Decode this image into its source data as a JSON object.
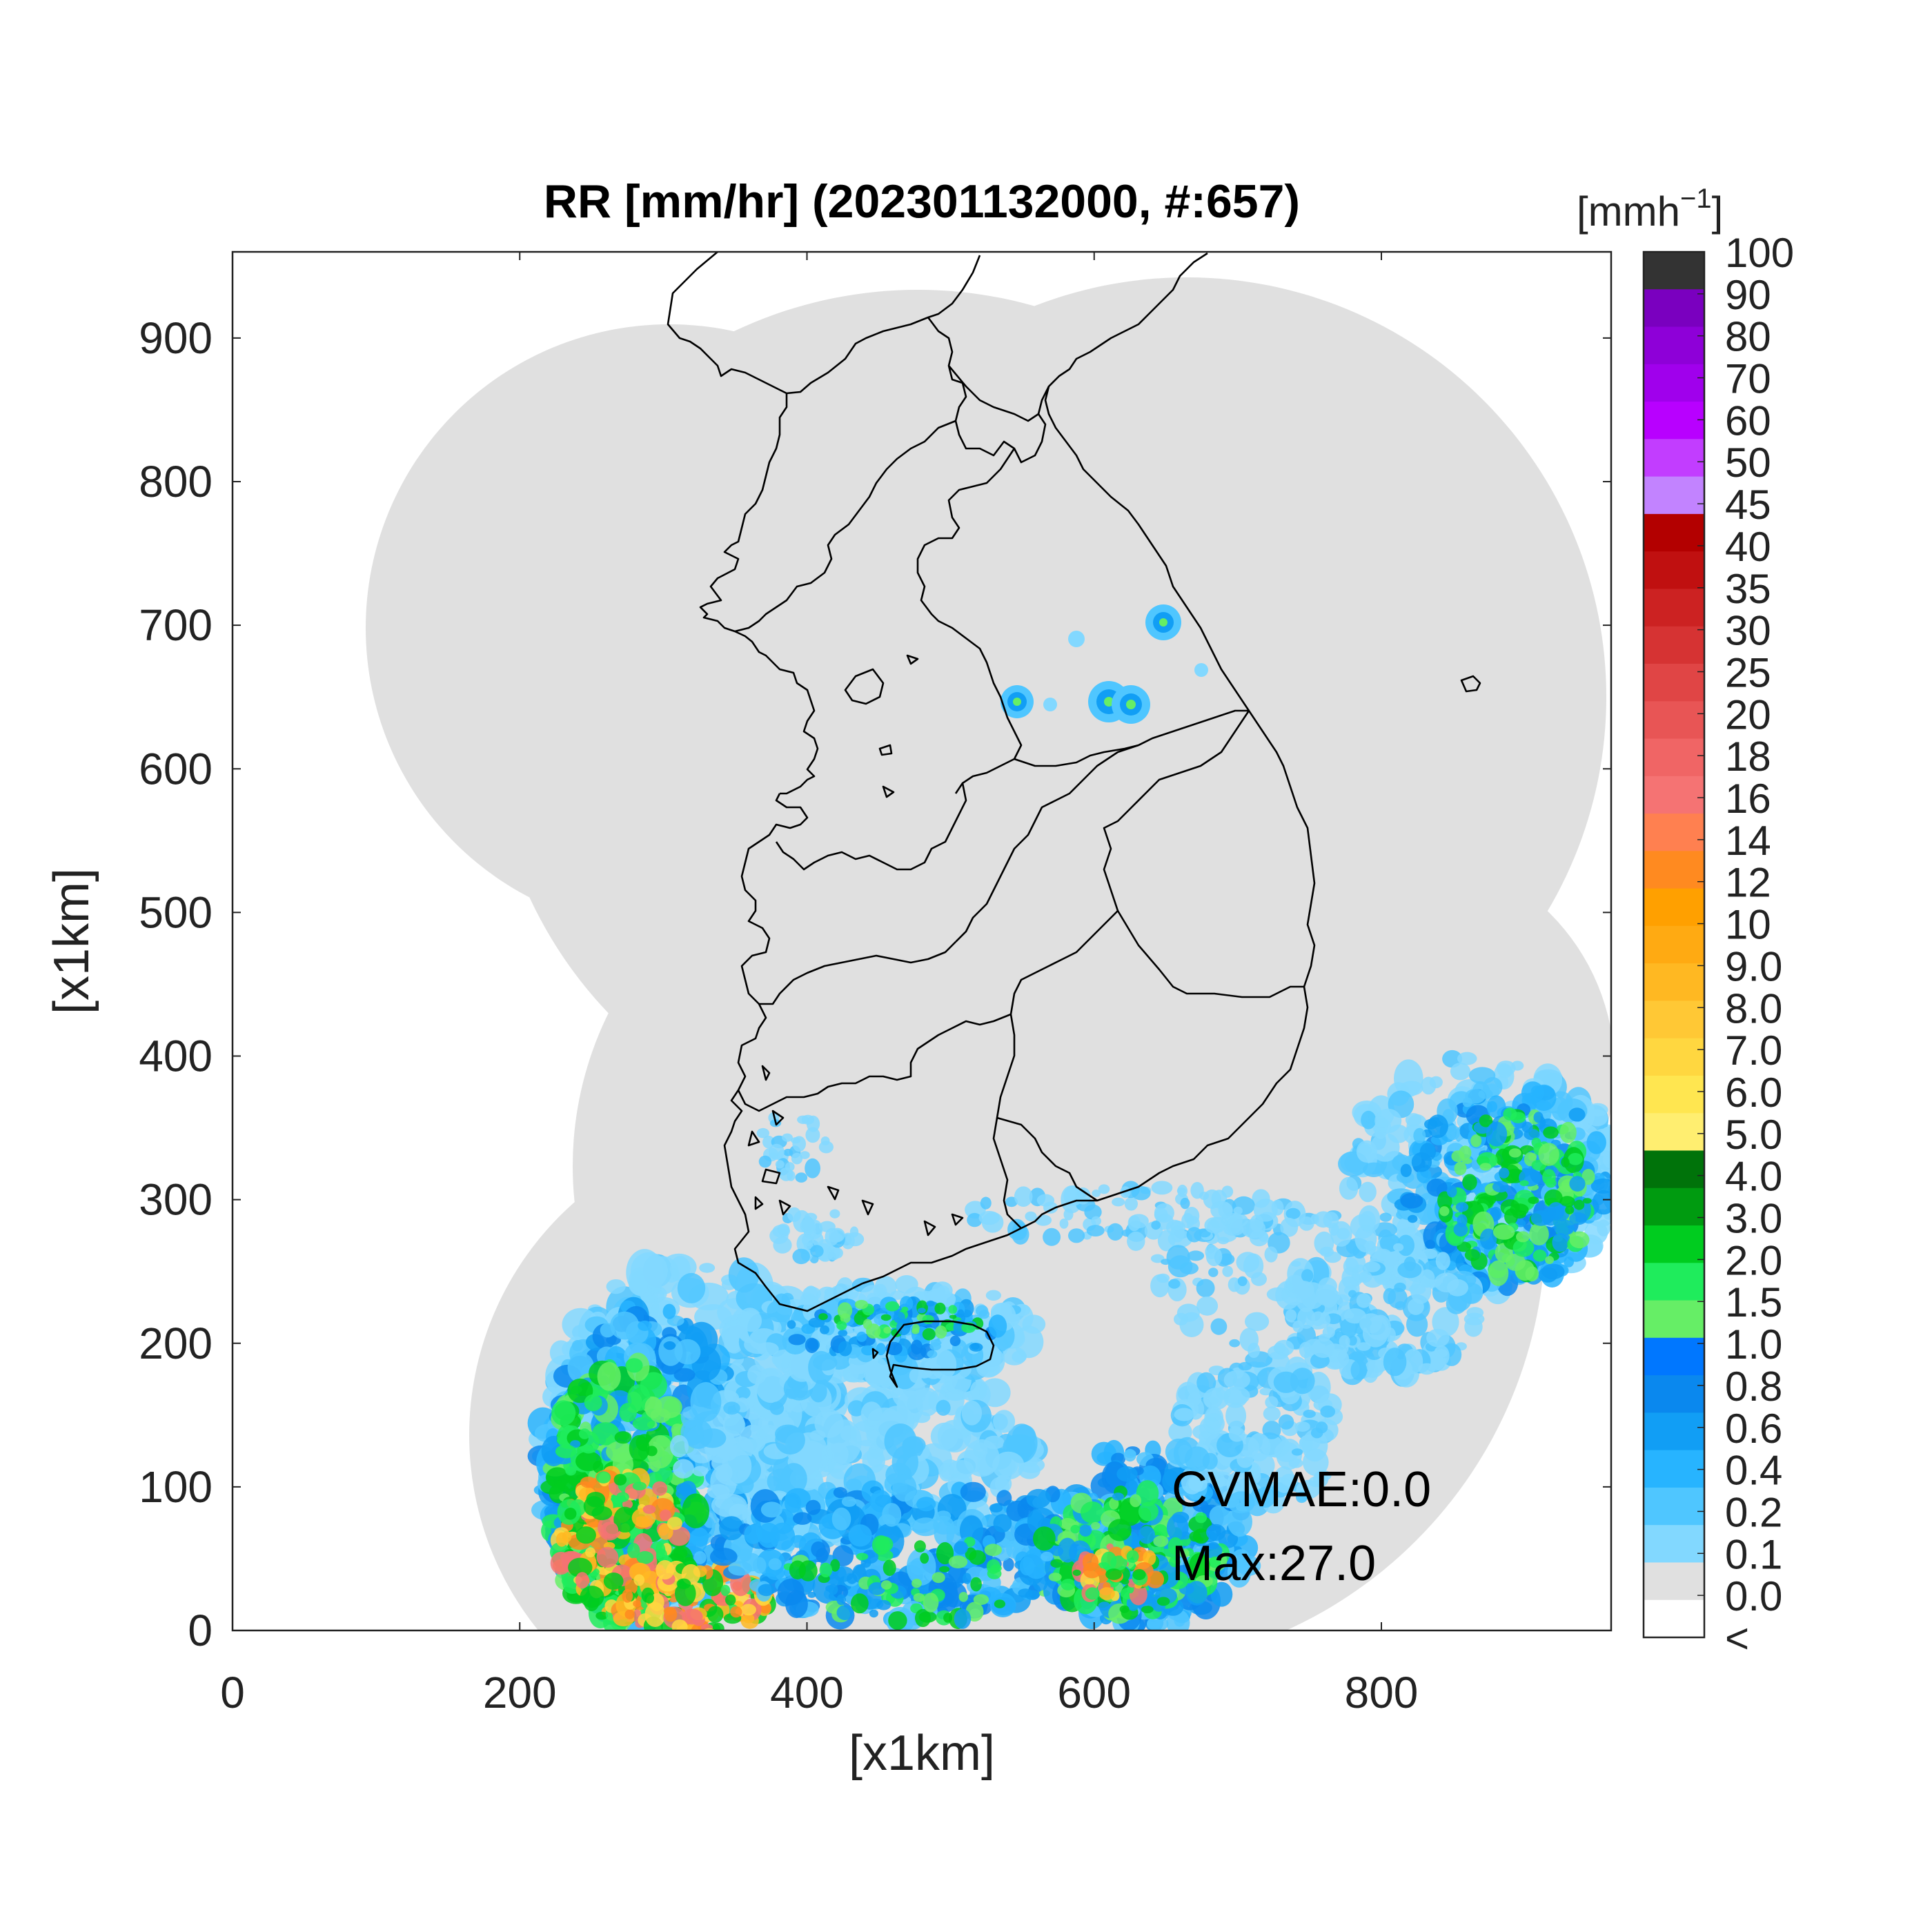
{
  "title": "RR [mm/hr] (202301132000, #:657)",
  "xlabel": "[x1km]",
  "ylabel": "[x1km]",
  "colorbar": {
    "unit_main": "[mmh",
    "unit_exp": "−1",
    "unit_close": "]",
    "labels": [
      "100",
      "90",
      "80",
      "70",
      "60",
      "50",
      "45",
      "40",
      "35",
      "30",
      "25",
      "20",
      "18",
      "16",
      "14",
      "12",
      "10",
      "9.0",
      "8.0",
      "7.0",
      "6.0",
      "5.0",
      "4.0",
      "3.0",
      "2.0",
      "1.5",
      "1.0",
      "0.8",
      "0.6",
      "0.4",
      "0.2",
      "0.1",
      "0.0",
      "<"
    ],
    "colors": [
      "#333333",
      "#7a00bf",
      "#8e00d8",
      "#a000ec",
      "#b800ff",
      "#c23dff",
      "#c283ff",
      "#b30000",
      "#c01010",
      "#cc2222",
      "#d63333",
      "#e04545",
      "#e85555",
      "#f06565",
      "#f57373",
      "#ff8050",
      "#ff8a20",
      "#ffa000",
      "#ffaa12",
      "#ffb822",
      "#ffc835",
      "#ffd740",
      "#ffe650",
      "#ffee70",
      "#00730a",
      "#009b10",
      "#00cc1f",
      "#1fec5c",
      "#66ee66",
      "#0077ff",
      "#0a88ee",
      "#119ef5",
      "#27b4ff",
      "#4fc6ff",
      "#82d8ff",
      "#e0e0e0",
      "#ffffff"
    ]
  },
  "annotations": {
    "cvmae": "CVMAE:0.0",
    "max": "Max:27.0"
  },
  "map_fill": "#e0e0e0",
  "chart_data": {
    "type": "heatmap",
    "title": "RR [mm/hr] (202301132000, #:657)",
    "xlabel": "[x1km]",
    "ylabel": "[x1km]",
    "xlim": [
      0,
      960
    ],
    "ylim": [
      0,
      960
    ],
    "xticks": [
      0,
      200,
      400,
      600,
      800
    ],
    "yticks": [
      0,
      100,
      200,
      300,
      400,
      500,
      600,
      700,
      800,
      900
    ],
    "colorbar_unit": "mmh^-1",
    "colorbar_levels": [
      "<",
      "0.0",
      "0.1",
      "0.2",
      "0.4",
      "0.6",
      "0.8",
      "1.0",
      "1.5",
      "2.0",
      "3.0",
      "4.0",
      "5.0",
      "6.0",
      "7.0",
      "8.0",
      "9.0",
      "10",
      "12",
      "14",
      "16",
      "18",
      "20",
      "25",
      "30",
      "35",
      "40",
      "45",
      "50",
      "60",
      "70",
      "80",
      "90",
      "100"
    ],
    "max_value": 27.0,
    "cvmae": 0.0
  }
}
